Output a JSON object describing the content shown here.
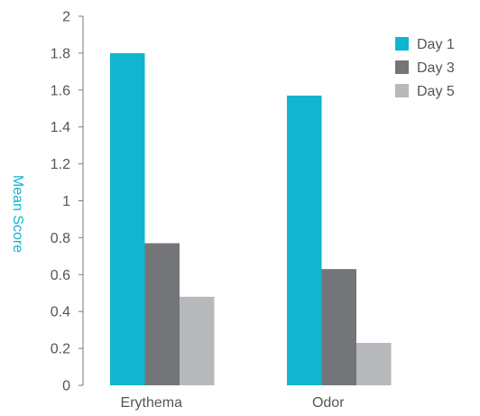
{
  "chart_data": {
    "type": "bar",
    "categories": [
      "Erythema",
      "Odor"
    ],
    "series": [
      {
        "name": "Day 1",
        "values": [
          1.8,
          1.57
        ],
        "color": "#11b5cf"
      },
      {
        "name": "Day 3",
        "values": [
          0.77,
          0.63
        ],
        "color": "#747578"
      },
      {
        "name": "Day 5",
        "values": [
          0.48,
          0.23
        ],
        "color": "#b8b9bc"
      }
    ],
    "title": "",
    "xlabel": "",
    "ylabel": "Mean Score",
    "ylim": [
      0,
      2
    ],
    "yticks": [
      "0",
      "0.2",
      "0.4",
      "0.6",
      "0.8",
      "1",
      "1.2",
      "1.4",
      "1.6",
      "1.8",
      "2"
    ],
    "grid": false,
    "legend_position": "top-right"
  }
}
